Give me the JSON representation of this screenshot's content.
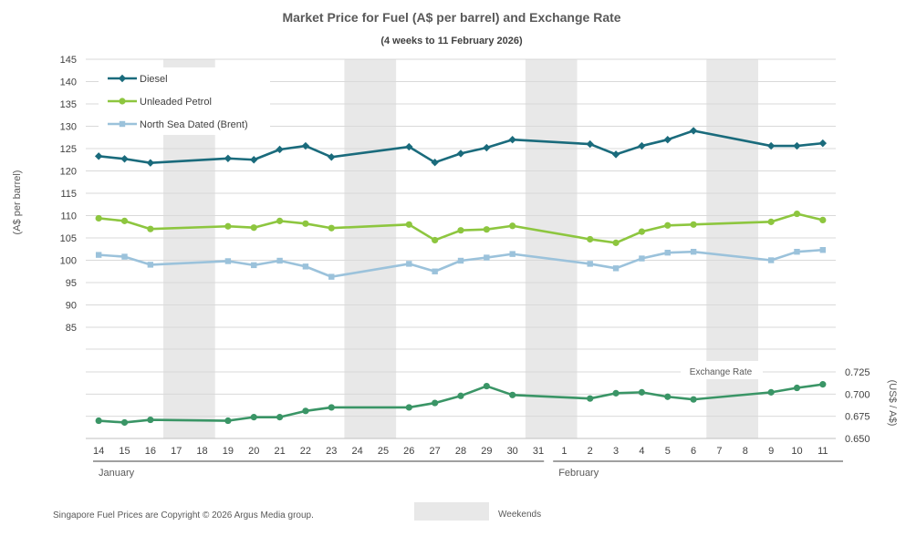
{
  "chart_data": {
    "type": "line",
    "title": "Market Price for Fuel (A$ per barrel) and Exchange Rate",
    "subtitle": "(4 weeks to 11 February 2026)",
    "ylabel": "(A$ per barrel)",
    "y2label": "(US$ / A$)",
    "ylim": [
      85,
      145
    ],
    "yticks": [
      85,
      90,
      95,
      100,
      105,
      110,
      115,
      120,
      125,
      130,
      135,
      140,
      145
    ],
    "y2lim": [
      0.65,
      0.725
    ],
    "y2ticks": [
      "0.650",
      "0.675",
      "0.700",
      "0.725"
    ],
    "categories": [
      "14",
      "15",
      "16",
      "17",
      "18",
      "19",
      "20",
      "21",
      "22",
      "23",
      "24",
      "25",
      "26",
      "27",
      "28",
      "29",
      "30",
      "31",
      "1",
      "2",
      "3",
      "4",
      "5",
      "6",
      "7",
      "8",
      "9",
      "10",
      "11"
    ],
    "months": [
      {
        "label": "January",
        "start_index": 0
      },
      {
        "label": "February",
        "start_index": 18
      }
    ],
    "weekends": [
      [
        3,
        4
      ],
      [
        10,
        11
      ],
      [
        17,
        18
      ],
      [
        24,
        25
      ]
    ],
    "weekends_label": "Weekends",
    "exchange_rate_label": "Exchange Rate",
    "series": [
      {
        "name": "Diesel",
        "color": "#1a6b7c",
        "marker": "diamond",
        "values": [
          123.3,
          122.7,
          121.8,
          null,
          null,
          122.8,
          122.5,
          124.8,
          125.6,
          123.1,
          null,
          null,
          125.4,
          121.9,
          123.9,
          125.2,
          127.0,
          null,
          null,
          126.0,
          123.7,
          125.6,
          127.0,
          129.0,
          null,
          null,
          125.6,
          125.6,
          126.2
        ]
      },
      {
        "name": "Unleaded Petrol",
        "color": "#8dc63f",
        "marker": "circle",
        "values": [
          109.4,
          108.8,
          107.0,
          null,
          null,
          107.6,
          107.3,
          108.8,
          108.2,
          107.2,
          null,
          null,
          108.0,
          104.5,
          106.7,
          106.9,
          107.7,
          null,
          null,
          104.7,
          103.9,
          106.4,
          107.8,
          108.0,
          null,
          null,
          108.6,
          110.4,
          109.0
        ]
      },
      {
        "name": "North Sea Dated (Brent)",
        "color": "#9bc2db",
        "marker": "square",
        "values": [
          101.2,
          100.8,
          99.0,
          null,
          null,
          99.8,
          98.9,
          99.9,
          98.6,
          96.3,
          null,
          null,
          99.2,
          97.5,
          99.9,
          100.6,
          101.4,
          null,
          null,
          99.2,
          98.2,
          100.4,
          101.7,
          101.9,
          null,
          null,
          100.0,
          101.9,
          102.3
        ]
      },
      {
        "name": "Exchange Rate",
        "axis": "right",
        "color": "#3a9566",
        "marker": "circle",
        "values": [
          0.67,
          0.668,
          0.671,
          null,
          null,
          0.67,
          0.674,
          0.674,
          0.681,
          0.685,
          null,
          null,
          0.685,
          0.69,
          0.698,
          0.709,
          0.699,
          null,
          null,
          0.695,
          0.701,
          0.702,
          0.697,
          0.694,
          null,
          null,
          0.702,
          0.707,
          0.711
        ]
      }
    ],
    "footnote": "Singapore Fuel Prices are Copyright © 2026 Argus Media group."
  }
}
